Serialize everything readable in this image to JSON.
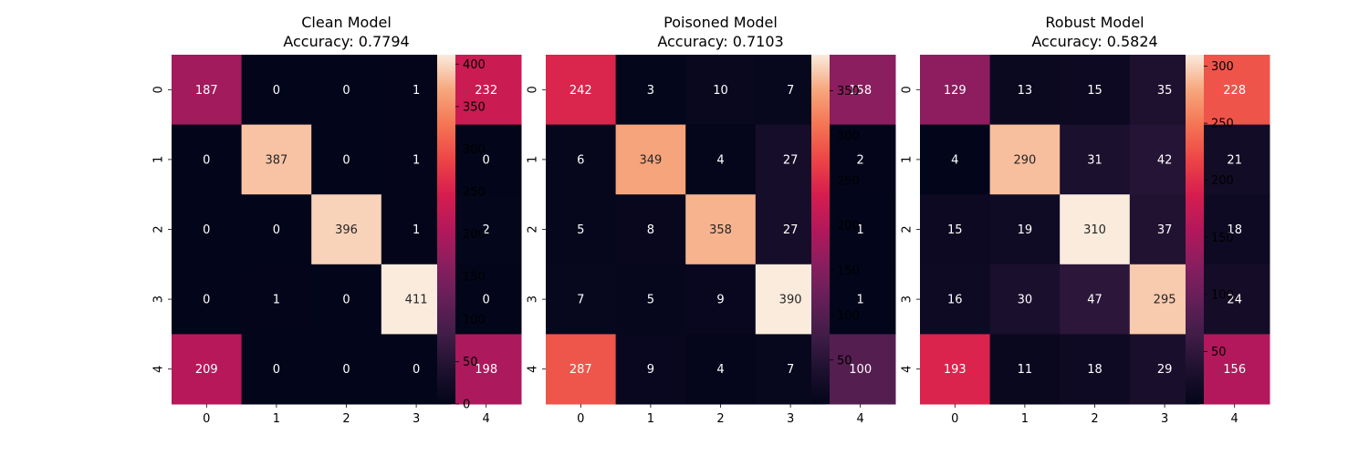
{
  "chart_data": [
    {
      "type": "heatmap",
      "title": "Clean Model",
      "subtitle": "Accuracy: 0.7794",
      "x_categories": [
        "0",
        "1",
        "2",
        "3",
        "4"
      ],
      "y_categories": [
        "0",
        "1",
        "2",
        "3",
        "4"
      ],
      "matrix": [
        [
          187,
          0,
          0,
          1,
          232
        ],
        [
          0,
          387,
          0,
          1,
          0
        ],
        [
          0,
          0,
          396,
          1,
          2
        ],
        [
          0,
          1,
          0,
          411,
          0
        ],
        [
          209,
          0,
          0,
          0,
          198
        ]
      ],
      "vmin": 0,
      "vmax": 411,
      "colorbar_ticks": [
        0,
        50,
        100,
        150,
        200,
        250,
        300,
        350,
        400
      ],
      "colormap": "rocket",
      "legend": "colorbar-right"
    },
    {
      "type": "heatmap",
      "title": "Poisoned Model",
      "subtitle": "Accuracy: 0.7103",
      "x_categories": [
        "0",
        "1",
        "2",
        "3",
        "4"
      ],
      "y_categories": [
        "0",
        "1",
        "2",
        "3",
        "4"
      ],
      "matrix": [
        [
          242,
          3,
          10,
          7,
          158
        ],
        [
          6,
          349,
          4,
          27,
          2
        ],
        [
          5,
          8,
          358,
          27,
          1
        ],
        [
          7,
          5,
          9,
          390,
          1
        ],
        [
          287,
          9,
          4,
          7,
          100
        ]
      ],
      "vmin": 1,
      "vmax": 390,
      "colorbar_ticks": [
        50,
        100,
        150,
        200,
        250,
        300,
        350
      ],
      "colormap": "rocket",
      "legend": "colorbar-right"
    },
    {
      "type": "heatmap",
      "title": "Robust Model",
      "subtitle": "Accuracy: 0.5824",
      "x_categories": [
        "0",
        "1",
        "2",
        "3",
        "4"
      ],
      "y_categories": [
        "0",
        "1",
        "2",
        "3",
        "4"
      ],
      "matrix": [
        [
          129,
          13,
          15,
          35,
          228
        ],
        [
          4,
          290,
          31,
          42,
          21
        ],
        [
          15,
          19,
          310,
          37,
          18
        ],
        [
          16,
          30,
          47,
          295,
          24
        ],
        [
          193,
          11,
          18,
          29,
          156
        ]
      ],
      "vmin": 4,
      "vmax": 310,
      "colorbar_ticks": [
        50,
        100,
        150,
        200,
        250,
        300
      ],
      "colormap": "rocket",
      "legend": "colorbar-right"
    }
  ]
}
